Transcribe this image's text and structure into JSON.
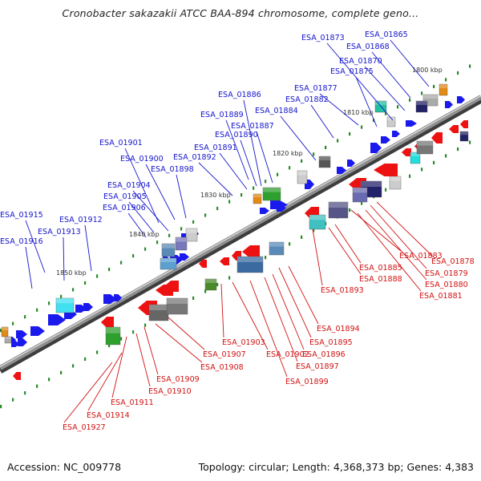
{
  "title": "Cronobacter sakazakii ATCC BAA-894 chromosome, complete geno...",
  "footer": {
    "accession": "Accession: NC_009778",
    "summary": "Topology: circular; Length: 4,368,373 bp; Genes: 4,383"
  },
  "colors": {
    "forward_label": "#1515cc",
    "reverse_label": "#d11212",
    "forward_gene": "#1a1aee",
    "reverse_gene": "#ee1111",
    "backbone": "#808080",
    "tick_mark": "#2a8a2a"
  },
  "position_ticks": [
    "1800 kbp",
    "1810 kbp",
    "1820 kbp",
    "1830 kbp",
    "1840 kbp",
    "1850 kbp"
  ],
  "forward_labels": [
    "ESA_01865",
    "ESA_01868",
    "ESA_01870",
    "ESA_01873",
    "ESA_01875",
    "ESA_01877",
    "ESA_01882",
    "ESA_01884",
    "ESA_01886",
    "ESA_01887",
    "ESA_01889",
    "ESA_01890",
    "ESA_01891",
    "ESA_01892",
    "ESA_01898",
    "ESA_01900",
    "ESA_01901",
    "ESA_01904",
    "ESA_01905",
    "ESA_01906",
    "ESA_01912",
    "ESA_01913",
    "ESA_01915",
    "ESA_01916"
  ],
  "reverse_labels": [
    "ESA_01878",
    "ESA_01879",
    "ESA_01880",
    "ESA_01881",
    "ESA_01883",
    "ESA_01885",
    "ESA_01888",
    "ESA_01893",
    "ESA_01894",
    "ESA_01895",
    "ESA_01896",
    "ESA_01897",
    "ESA_01899",
    "ESA_01902",
    "ESA_01903",
    "ESA_01907",
    "ESA_01908",
    "ESA_01909",
    "ESA_01910",
    "ESA_01911",
    "ESA_01914",
    "ESA_01927"
  ]
}
